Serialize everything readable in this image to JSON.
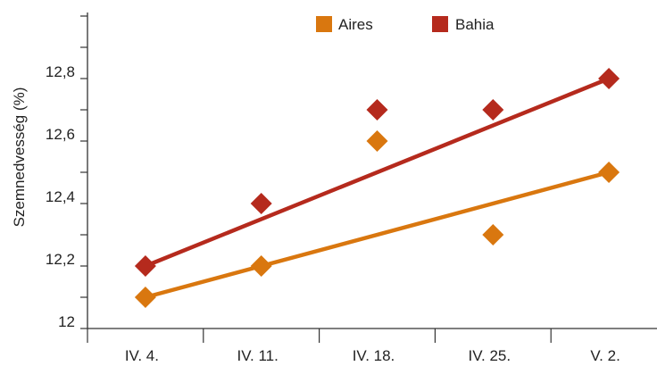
{
  "chart_data": {
    "type": "scatter",
    "title": "",
    "xlabel": "",
    "ylabel": "Szemnedvesség (%)",
    "categories": [
      "IV. 4.",
      "IV. 11.",
      "IV. 18.",
      "IV. 25.",
      "V. 2."
    ],
    "y_ticks": [
      {
        "value": 12.0,
        "label": "12"
      },
      {
        "value": 12.2,
        "label": "12,2"
      },
      {
        "value": 12.4,
        "label": "12,4"
      },
      {
        "value": 12.6,
        "label": "12,6"
      },
      {
        "value": 12.8,
        "label": "12,8"
      }
    ],
    "ylim": [
      12.0,
      13.0
    ],
    "grid": false,
    "legend_position": "top-right",
    "series": [
      {
        "name": "Aires",
        "color": "#d9770f",
        "marker": "diamond",
        "values": [
          12.1,
          12.2,
          12.6,
          12.3,
          12.5
        ],
        "trendline": [
          12.1,
          12.2,
          12.3,
          12.4,
          12.5
        ]
      },
      {
        "name": "Bahia",
        "color": "#b52a1d",
        "marker": "diamond",
        "values": [
          12.2,
          12.4,
          12.7,
          12.7,
          12.8
        ],
        "trendline": [
          12.2,
          12.35,
          12.5,
          12.65,
          12.8
        ]
      }
    ]
  }
}
